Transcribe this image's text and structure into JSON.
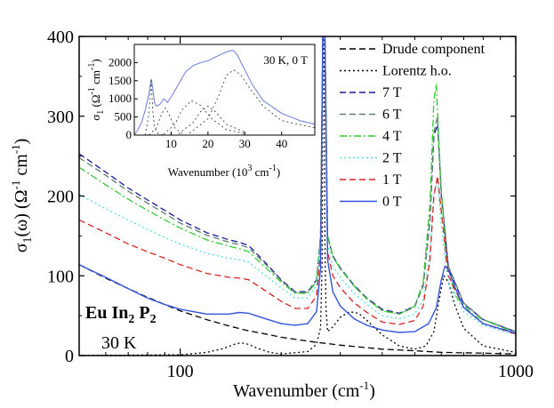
{
  "chart_data": [
    {
      "type": "line",
      "title": "",
      "xlabel": "Wavenumber (cm",
      "xlabel_sup": "-1",
      "xlabel_end": ")",
      "ylabel": "σ",
      "ylabel_sub": "1",
      "ylabel_mid": "(ω) (Ω",
      "ylabel_sup1": "-1",
      "ylabel_cm": " cm",
      "ylabel_sup2": "-1",
      "ylabel_end": ")",
      "xscale": "log",
      "xlim": [
        50,
        1000
      ],
      "ylim": [
        0,
        400
      ],
      "x_ticks": [
        100,
        1000
      ],
      "x_tick_labels": [
        "100",
        "1000"
      ],
      "y_ticks": [
        0,
        100,
        200,
        300,
        400
      ],
      "y_tick_labels": [
        "0",
        "100",
        "200",
        "300",
        "400"
      ],
      "legend_position": "top-right",
      "annotations": {
        "compound_a": "Eu In",
        "compound_sub_a": "2",
        "compound_b": " P",
        "compound_sub_b": "2",
        "temperature": "30 K"
      },
      "series": [
        {
          "name": "Drude component",
          "color": "#000000",
          "dash": "dashed",
          "x": [
            50,
            60,
            70,
            80,
            90,
            100,
            120,
            140,
            160,
            180,
            200,
            250,
            300,
            400,
            500,
            600,
            800,
            1000
          ],
          "y": [
            114,
            97,
            84,
            73,
            64,
            56,
            45,
            37,
            31,
            27,
            23,
            17,
            13,
            8,
            6,
            4,
            3,
            2
          ]
        },
        {
          "name": "Lorentz h.o.",
          "color": "#000000",
          "dash": "dotted",
          "x": [
            50,
            100,
            120,
            135,
            145,
            152,
            160,
            170,
            185,
            200,
            240,
            255,
            262,
            265,
            266,
            268,
            270,
            272,
            275,
            285,
            300,
            320,
            340,
            360,
            400,
            450,
            500,
            540,
            570,
            590,
            610,
            630,
            660,
            700,
            800,
            1000
          ],
          "y": [
            0,
            1,
            4,
            9,
            14,
            16,
            14,
            9,
            4,
            2,
            5,
            14,
            35,
            120,
            400,
            400,
            140,
            60,
            30,
            36,
            48,
            55,
            53,
            44,
            26,
            12,
            8,
            12,
            30,
            68,
            100,
            92,
            62,
            34,
            12,
            4
          ]
        },
        {
          "name": "7 T",
          "color": "#1a1aa0",
          "dash": "dashed",
          "x": [
            50,
            60,
            70,
            80,
            90,
            100,
            120,
            140,
            150,
            160,
            180,
            200,
            220,
            240,
            255,
            262,
            266,
            270,
            275,
            285,
            300,
            330,
            360,
            400,
            450,
            500,
            530,
            555,
            570,
            585,
            600,
            630,
            700,
            800,
            1000
          ],
          "y": [
            253,
            230,
            210,
            195,
            182,
            170,
            154,
            145,
            142,
            138,
            116,
            95,
            80,
            80,
            95,
            150,
            400,
            400,
            150,
            125,
            110,
            88,
            72,
            58,
            53,
            62,
            88,
            170,
            275,
            290,
            200,
            110,
            65,
            45,
            30
          ]
        },
        {
          "name": "6 T",
          "color": "#608070",
          "dash": "dashed",
          "x": [
            50,
            60,
            70,
            80,
            90,
            100,
            120,
            140,
            150,
            160,
            180,
            200,
            220,
            240,
            255,
            262,
            266,
            270,
            275,
            285,
            300,
            330,
            360,
            400,
            450,
            500,
            530,
            555,
            570,
            585,
            600,
            630,
            700,
            800,
            1000
          ],
          "y": [
            248,
            226,
            206,
            191,
            178,
            166,
            151,
            142,
            139,
            135,
            114,
            94,
            79,
            79,
            94,
            150,
            400,
            400,
            150,
            124,
            109,
            87,
            71,
            57,
            52,
            61,
            87,
            168,
            280,
            300,
            205,
            112,
            66,
            45,
            30
          ]
        },
        {
          "name": "4 T",
          "color": "#33cc33",
          "dash": "dashdot",
          "x": [
            50,
            60,
            70,
            80,
            90,
            100,
            120,
            140,
            150,
            160,
            180,
            200,
            220,
            240,
            255,
            262,
            266,
            270,
            275,
            285,
            300,
            330,
            360,
            400,
            450,
            500,
            530,
            555,
            570,
            580,
            595,
            620,
            660,
            750,
            1000
          ],
          "y": [
            236,
            214,
            196,
            182,
            170,
            160,
            145,
            137,
            134,
            130,
            110,
            92,
            78,
            78,
            93,
            150,
            400,
            400,
            150,
            124,
            109,
            87,
            71,
            56,
            52,
            62,
            92,
            190,
            320,
            340,
            230,
            120,
            75,
            50,
            28
          ]
        },
        {
          "name": "2 T",
          "color": "#55dddd",
          "dash": "dotted",
          "x": [
            50,
            60,
            70,
            80,
            90,
            100,
            120,
            140,
            150,
            160,
            180,
            200,
            220,
            240,
            255,
            262,
            266,
            270,
            275,
            285,
            300,
            330,
            360,
            400,
            450,
            500,
            530,
            555,
            570,
            585,
            600,
            630,
            700,
            800,
            1000
          ],
          "y": [
            202,
            184,
            170,
            158,
            148,
            140,
            128,
            122,
            120,
            117,
            100,
            85,
            72,
            72,
            88,
            140,
            400,
            400,
            140,
            112,
            98,
            78,
            64,
            50,
            46,
            52,
            70,
            130,
            205,
            220,
            160,
            90,
            55,
            38,
            26
          ]
        },
        {
          "name": "1 T",
          "color": "#dd2222",
          "dash": "dashed",
          "x": [
            50,
            60,
            70,
            80,
            90,
            100,
            120,
            140,
            150,
            160,
            180,
            200,
            220,
            240,
            255,
            262,
            266,
            270,
            275,
            285,
            300,
            330,
            360,
            400,
            450,
            500,
            530,
            555,
            570,
            585,
            600,
            630,
            700,
            800,
            1000
          ],
          "y": [
            170,
            154,
            140,
            130,
            122,
            114,
            103,
            98,
            97,
            95,
            81,
            68,
            59,
            59,
            75,
            130,
            400,
            400,
            130,
            100,
            85,
            66,
            54,
            42,
            39,
            44,
            62,
            120,
            200,
            225,
            180,
            100,
            60,
            40,
            27
          ]
        },
        {
          "name": "0 T",
          "color": "#3355dd",
          "dash": "solid",
          "x": [
            50,
            60,
            70,
            80,
            90,
            100,
            120,
            140,
            150,
            160,
            180,
            200,
            220,
            240,
            255,
            262,
            266,
            270,
            275,
            285,
            300,
            330,
            360,
            400,
            450,
            500,
            550,
            580,
            600,
            615,
            630,
            660,
            700,
            800,
            1000
          ],
          "y": [
            114,
            98,
            84,
            72,
            64,
            58,
            52,
            52,
            54,
            53,
            46,
            40,
            38,
            40,
            55,
            110,
            400,
            400,
            120,
            80,
            62,
            46,
            38,
            32,
            29,
            30,
            40,
            60,
            95,
            112,
            108,
            85,
            60,
            40,
            28
          ]
        }
      ]
    },
    {
      "type": "line",
      "title": "30 K, 0 T",
      "xlabel": "Wavenumber (10",
      "xlabel_sup": "3",
      "xlabel_mid": " cm",
      "xlabel_sup2": "-1",
      "xlabel_end": ")",
      "ylabel": "σ",
      "ylabel_sub": "1",
      "ylabel_mid": " (Ω",
      "ylabel_sup1": "-1",
      "ylabel_cm": " cm",
      "ylabel_sup2": "-1",
      "ylabel_end": ")",
      "xlim": [
        0,
        49
      ],
      "ylim": [
        0,
        2500
      ],
      "x_ticks": [
        10,
        20,
        30,
        40
      ],
      "x_tick_labels": [
        "10",
        "20",
        "30",
        "40"
      ],
      "y_ticks": [
        0,
        500,
        1000,
        1500,
        2000
      ],
      "y_tick_labels": [
        "0",
        "500",
        "1000",
        "1500",
        "2000"
      ],
      "series": [
        {
          "name": "",
          "color": "#7788dd",
          "dash": "solid",
          "x": [
            0,
            1,
            2,
            3,
            4,
            4.6,
            5,
            5.5,
            6,
            7,
            8,
            8.5,
            9,
            10,
            12,
            14,
            16,
            18,
            20,
            22,
            24,
            26,
            27,
            28,
            30,
            32,
            35,
            40,
            45,
            49
          ],
          "y": [
            0,
            150,
            350,
            700,
            1150,
            1550,
            1300,
            900,
            800,
            850,
            1000,
            960,
            900,
            1050,
            1400,
            1750,
            1920,
            2000,
            2050,
            2150,
            2250,
            2330,
            2330,
            2200,
            1800,
            1400,
            950,
            600,
            400,
            300
          ]
        },
        {
          "name": "",
          "color": "#444444",
          "dash": "dotted",
          "x": [
            3,
            4,
            4.6,
            5,
            5.5,
            6.5,
            8
          ],
          "y": [
            0,
            600,
            1550,
            700,
            200,
            40,
            0
          ]
        },
        {
          "name": "",
          "color": "#444444",
          "dash": "dotted",
          "x": [
            4,
            6,
            7.5,
            8.5,
            9.5,
            11,
            13
          ],
          "y": [
            0,
            200,
            600,
            750,
            550,
            200,
            40
          ]
        },
        {
          "name": "",
          "color": "#444444",
          "dash": "dotted",
          "x": [
            8,
            11,
            13,
            15.5,
            18,
            21,
            25,
            30
          ],
          "y": [
            20,
            300,
            700,
            950,
            820,
            450,
            150,
            40
          ]
        },
        {
          "name": "",
          "color": "#444444",
          "dash": "dotted",
          "x": [
            12,
            16,
            18,
            20,
            22,
            25,
            30
          ],
          "y": [
            30,
            350,
            650,
            800,
            650,
            300,
            80
          ]
        },
        {
          "name": "",
          "color": "#444444",
          "dash": "dotted",
          "x": [
            15,
            20,
            23,
            25,
            27,
            29,
            32,
            35,
            40,
            49
          ],
          "y": [
            50,
            450,
            1100,
            1650,
            1800,
            1650,
            1200,
            800,
            400,
            200
          ]
        }
      ]
    }
  ]
}
